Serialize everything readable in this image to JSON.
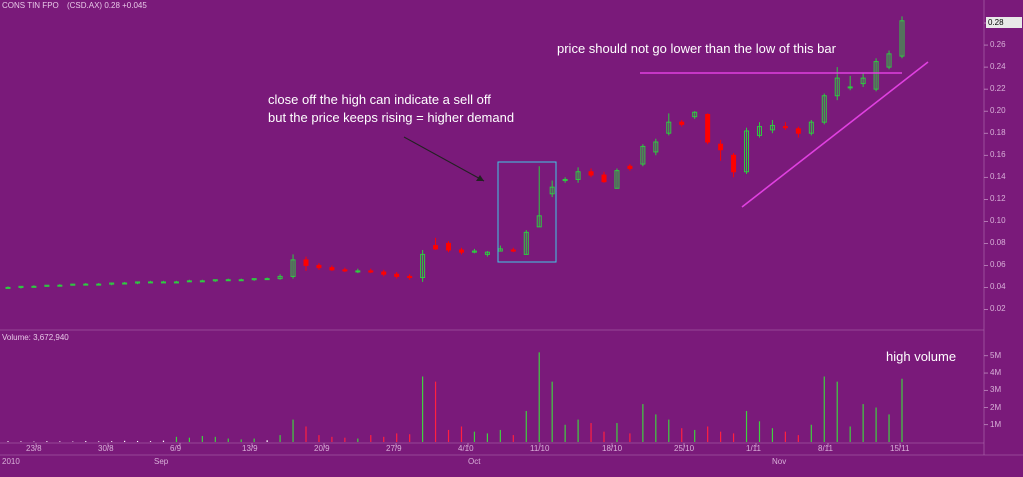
{
  "header": {
    "title": "CONS TIN FPO",
    "symbol_line": "(CSD.AX) 0.28 +0.045"
  },
  "volume_label": "Volume: 3,672,940",
  "annotations": {
    "sell_off_line1": "close off the high can indicate a sell off",
    "sell_off_line2": "but the price keeps rising = higher demand",
    "low_bar": "price should not go lower than the low of this bar",
    "high_volume": "high volume"
  },
  "colors": {
    "background": "#7a1a7a",
    "up_candle": "#2ecc40",
    "down_candle": "#ff0000",
    "annotation_line": "#e040e0",
    "box": "#40c8e8",
    "vol_up": "#40d040",
    "vol_down": "#ff2040",
    "vol_neutral": "#ffffff"
  },
  "chart_data": {
    "type": "candlestick",
    "price_axis": {
      "ticks": [
        "0.28",
        "0.26",
        "0.24",
        "0.22",
        "0.20",
        "0.18",
        "0.16",
        "0.14",
        "0.12",
        "0.10",
        "0.08",
        "0.06",
        "0.04",
        "0.02"
      ],
      "ylim": [
        0.005,
        0.29
      ],
      "current": "0.28"
    },
    "volume_axis": {
      "ticks": [
        "5M",
        "4M",
        "3M",
        "2M",
        "1M"
      ],
      "ylim": [
        0,
        5.8
      ]
    },
    "x_tick_labels": [
      "23/8",
      "30/8",
      "6/9",
      "13/9",
      "20/9",
      "27/9",
      "4/10",
      "11/10",
      "18/10",
      "25/10",
      "1/11",
      "8/11",
      "15/11"
    ],
    "period_labels": [
      "2010",
      "Sep",
      "Oct",
      "Nov"
    ],
    "candles": [
      {
        "o": 0.04,
        "h": 0.041,
        "l": 0.039,
        "c": 0.04,
        "v": 0.05
      },
      {
        "o": 0.04,
        "h": 0.041,
        "l": 0.039,
        "c": 0.041,
        "v": 0.04
      },
      {
        "o": 0.041,
        "h": 0.042,
        "l": 0.04,
        "c": 0.041,
        "v": 0.03
      },
      {
        "o": 0.041,
        "h": 0.042,
        "l": 0.041,
        "c": 0.042,
        "v": 0.05
      },
      {
        "o": 0.042,
        "h": 0.043,
        "l": 0.041,
        "c": 0.042,
        "v": 0.04
      },
      {
        "o": 0.042,
        "h": 0.043,
        "l": 0.042,
        "c": 0.043,
        "v": 0.03
      },
      {
        "o": 0.043,
        "h": 0.044,
        "l": 0.042,
        "c": 0.043,
        "v": 0.06
      },
      {
        "o": 0.043,
        "h": 0.044,
        "l": 0.043,
        "c": 0.043,
        "v": 0.04
      },
      {
        "o": 0.043,
        "h": 0.044,
        "l": 0.042,
        "c": 0.044,
        "v": 0.05
      },
      {
        "o": 0.044,
        "h": 0.045,
        "l": 0.043,
        "c": 0.044,
        "v": 0.07
      },
      {
        "o": 0.044,
        "h": 0.045,
        "l": 0.043,
        "c": 0.045,
        "v": 0.06
      },
      {
        "o": 0.045,
        "h": 0.046,
        "l": 0.044,
        "c": 0.045,
        "v": 0.05
      },
      {
        "o": 0.045,
        "h": 0.046,
        "l": 0.044,
        "c": 0.045,
        "v": 0.08
      },
      {
        "o": 0.045,
        "h": 0.046,
        "l": 0.044,
        "c": 0.045,
        "v": 0.3
      },
      {
        "o": 0.046,
        "h": 0.047,
        "l": 0.045,
        "c": 0.046,
        "v": 0.25
      },
      {
        "o": 0.046,
        "h": 0.047,
        "l": 0.045,
        "c": 0.046,
        "v": 0.35
      },
      {
        "o": 0.046,
        "h": 0.047,
        "l": 0.045,
        "c": 0.047,
        "v": 0.3
      },
      {
        "o": 0.047,
        "h": 0.048,
        "l": 0.046,
        "c": 0.047,
        "v": 0.2
      },
      {
        "o": 0.047,
        "h": 0.048,
        "l": 0.046,
        "c": 0.047,
        "v": 0.15
      },
      {
        "o": 0.047,
        "h": 0.048,
        "l": 0.046,
        "c": 0.048,
        "v": 0.2
      },
      {
        "o": 0.048,
        "h": 0.049,
        "l": 0.047,
        "c": 0.048,
        "v": 0.1
      },
      {
        "o": 0.048,
        "h": 0.052,
        "l": 0.047,
        "c": 0.05,
        "v": 0.4
      },
      {
        "o": 0.05,
        "h": 0.07,
        "l": 0.048,
        "c": 0.065,
        "v": 1.3
      },
      {
        "o": 0.065,
        "h": 0.068,
        "l": 0.055,
        "c": 0.06,
        "v": 0.9
      },
      {
        "o": 0.06,
        "h": 0.062,
        "l": 0.056,
        "c": 0.058,
        "v": 0.4
      },
      {
        "o": 0.058,
        "h": 0.06,
        "l": 0.055,
        "c": 0.056,
        "v": 0.3
      },
      {
        "o": 0.056,
        "h": 0.058,
        "l": 0.054,
        "c": 0.055,
        "v": 0.25
      },
      {
        "o": 0.055,
        "h": 0.057,
        "l": 0.053,
        "c": 0.055,
        "v": 0.2
      },
      {
        "o": 0.055,
        "h": 0.057,
        "l": 0.053,
        "c": 0.054,
        "v": 0.4
      },
      {
        "o": 0.054,
        "h": 0.056,
        "l": 0.05,
        "c": 0.052,
        "v": 0.3
      },
      {
        "o": 0.052,
        "h": 0.054,
        "l": 0.048,
        "c": 0.05,
        "v": 0.5
      },
      {
        "o": 0.05,
        "h": 0.052,
        "l": 0.047,
        "c": 0.049,
        "v": 0.45
      },
      {
        "o": 0.049,
        "h": 0.074,
        "l": 0.045,
        "c": 0.07,
        "v": 3.8
      },
      {
        "o": 0.078,
        "h": 0.085,
        "l": 0.074,
        "c": 0.075,
        "v": 3.5
      },
      {
        "o": 0.08,
        "h": 0.082,
        "l": 0.072,
        "c": 0.074,
        "v": 0.7
      },
      {
        "o": 0.074,
        "h": 0.076,
        "l": 0.07,
        "c": 0.072,
        "v": 0.9
      },
      {
        "o": 0.072,
        "h": 0.075,
        "l": 0.071,
        "c": 0.073,
        "v": 0.6
      },
      {
        "o": 0.07,
        "h": 0.073,
        "l": 0.068,
        "c": 0.072,
        "v": 0.5
      },
      {
        "o": 0.073,
        "h": 0.078,
        "l": 0.073,
        "c": 0.075,
        "v": 0.7
      },
      {
        "o": 0.074,
        "h": 0.076,
        "l": 0.072,
        "c": 0.073,
        "v": 0.4
      },
      {
        "o": 0.07,
        "h": 0.092,
        "l": 0.07,
        "c": 0.09,
        "v": 1.8
      },
      {
        "o": 0.095,
        "h": 0.15,
        "l": 0.095,
        "c": 0.105,
        "v": 5.2
      },
      {
        "o": 0.125,
        "h": 0.137,
        "l": 0.122,
        "c": 0.131,
        "v": 3.5
      },
      {
        "o": 0.137,
        "h": 0.14,
        "l": 0.135,
        "c": 0.138,
        "v": 1.0
      },
      {
        "o": 0.138,
        "h": 0.149,
        "l": 0.135,
        "c": 0.145,
        "v": 1.3
      },
      {
        "o": 0.145,
        "h": 0.148,
        "l": 0.14,
        "c": 0.142,
        "v": 1.1
      },
      {
        "o": 0.142,
        "h": 0.145,
        "l": 0.135,
        "c": 0.136,
        "v": 0.6
      },
      {
        "o": 0.13,
        "h": 0.148,
        "l": 0.13,
        "c": 0.146,
        "v": 1.1
      },
      {
        "o": 0.15,
        "h": 0.152,
        "l": 0.146,
        "c": 0.148,
        "v": 0.5
      },
      {
        "o": 0.152,
        "h": 0.17,
        "l": 0.15,
        "c": 0.168,
        "v": 2.2
      },
      {
        "o": 0.163,
        "h": 0.175,
        "l": 0.16,
        "c": 0.172,
        "v": 1.6
      },
      {
        "o": 0.18,
        "h": 0.198,
        "l": 0.178,
        "c": 0.19,
        "v": 1.3
      },
      {
        "o": 0.19,
        "h": 0.192,
        "l": 0.186,
        "c": 0.188,
        "v": 0.8
      },
      {
        "o": 0.195,
        "h": 0.2,
        "l": 0.193,
        "c": 0.199,
        "v": 0.7
      },
      {
        "o": 0.197,
        "h": 0.198,
        "l": 0.17,
        "c": 0.172,
        "v": 0.9
      },
      {
        "o": 0.17,
        "h": 0.174,
        "l": 0.155,
        "c": 0.165,
        "v": 0.6
      },
      {
        "o": 0.16,
        "h": 0.162,
        "l": 0.14,
        "c": 0.145,
        "v": 0.5
      },
      {
        "o": 0.145,
        "h": 0.185,
        "l": 0.143,
        "c": 0.182,
        "v": 1.8
      },
      {
        "o": 0.178,
        "h": 0.19,
        "l": 0.176,
        "c": 0.186,
        "v": 1.2
      },
      {
        "o": 0.183,
        "h": 0.192,
        "l": 0.18,
        "c": 0.187,
        "v": 0.8
      },
      {
        "o": 0.186,
        "h": 0.19,
        "l": 0.183,
        "c": 0.185,
        "v": 0.6
      },
      {
        "o": 0.184,
        "h": 0.186,
        "l": 0.176,
        "c": 0.18,
        "v": 0.4
      },
      {
        "o": 0.18,
        "h": 0.192,
        "l": 0.178,
        "c": 0.19,
        "v": 1.0
      },
      {
        "o": 0.19,
        "h": 0.216,
        "l": 0.188,
        "c": 0.214,
        "v": 3.8
      },
      {
        "o": 0.214,
        "h": 0.24,
        "l": 0.21,
        "c": 0.23,
        "v": 3.5
      },
      {
        "o": 0.222,
        "h": 0.232,
        "l": 0.219,
        "c": 0.222,
        "v": 0.9
      },
      {
        "o": 0.225,
        "h": 0.235,
        "l": 0.222,
        "c": 0.23,
        "v": 2.2
      },
      {
        "o": 0.22,
        "h": 0.248,
        "l": 0.218,
        "c": 0.245,
        "v": 2.0
      },
      {
        "o": 0.24,
        "h": 0.255,
        "l": 0.238,
        "c": 0.252,
        "v": 1.6
      },
      {
        "o": 0.25,
        "h": 0.286,
        "l": 0.248,
        "c": 0.282,
        "v": 3.67
      }
    ]
  }
}
